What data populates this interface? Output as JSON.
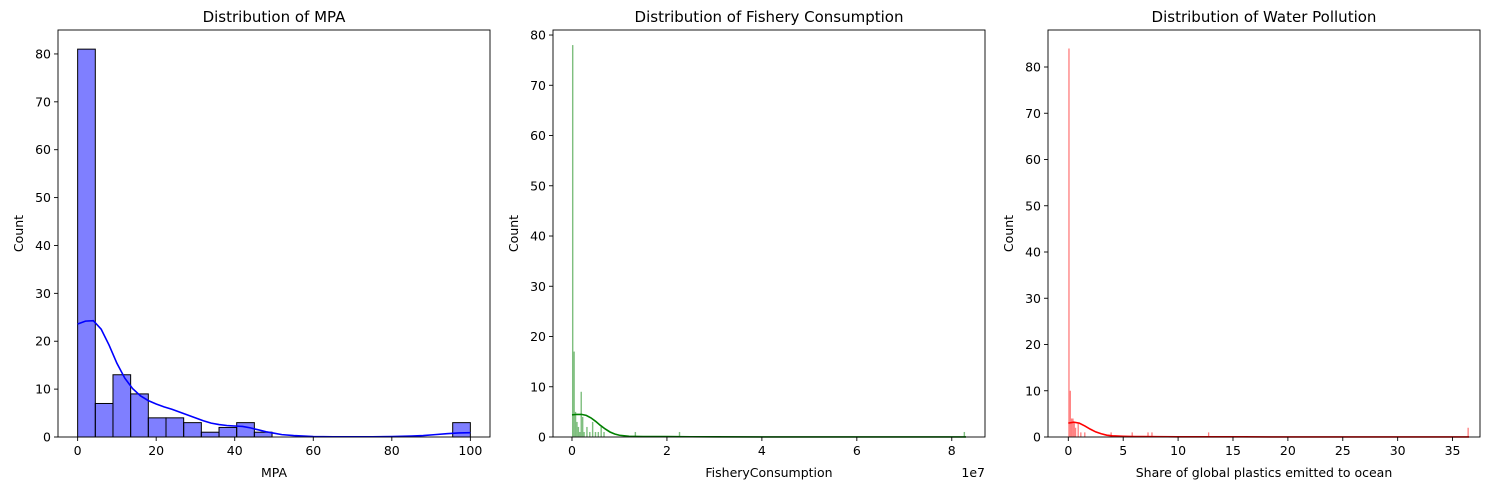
{
  "chart_data": [
    {
      "type": "bar",
      "title": "Distribution of MPA",
      "xlabel": "MPA",
      "ylabel": "Count",
      "xlim": [
        -5,
        105
      ],
      "ylim": [
        0,
        85
      ],
      "xticks": [
        0,
        20,
        40,
        60,
        80,
        100
      ],
      "yticks": [
        0,
        10,
        20,
        30,
        40,
        50,
        60,
        70,
        80
      ],
      "xtick_labels": [
        "0",
        "20",
        "40",
        "60",
        "80",
        "100"
      ],
      "ytick_labels": [
        "0",
        "10",
        "20",
        "30",
        "40",
        "50",
        "60",
        "70",
        "80"
      ],
      "bar_color": "#0000ff",
      "bar_alpha": 0.5,
      "bar_edge": "#000000",
      "kde_color": "#0000ff",
      "bins": [
        {
          "x0": 0.0,
          "x1": 4.5,
          "count": 81
        },
        {
          "x0": 4.5,
          "x1": 9.0,
          "count": 7
        },
        {
          "x0": 9.0,
          "x1": 13.5,
          "count": 13
        },
        {
          "x0": 13.5,
          "x1": 18.0,
          "count": 9
        },
        {
          "x0": 18.0,
          "x1": 22.5,
          "count": 4
        },
        {
          "x0": 22.5,
          "x1": 27.0,
          "count": 4
        },
        {
          "x0": 27.0,
          "x1": 31.5,
          "count": 3
        },
        {
          "x0": 31.5,
          "x1": 36.0,
          "count": 1
        },
        {
          "x0": 36.0,
          "x1": 40.5,
          "count": 2
        },
        {
          "x0": 40.5,
          "x1": 45.0,
          "count": 3
        },
        {
          "x0": 45.0,
          "x1": 49.5,
          "count": 1
        },
        {
          "x0": 95.5,
          "x1": 100.0,
          "count": 3
        }
      ],
      "kde": [
        [
          0,
          23.6
        ],
        [
          2,
          24.2
        ],
        [
          4,
          24.3
        ],
        [
          6,
          22.5
        ],
        [
          8,
          19.2
        ],
        [
          10,
          15.4
        ],
        [
          12,
          12.3
        ],
        [
          14,
          10.1
        ],
        [
          16,
          8.6
        ],
        [
          18,
          7.6
        ],
        [
          20,
          6.9
        ],
        [
          22,
          6.3
        ],
        [
          24,
          5.8
        ],
        [
          26,
          5.2
        ],
        [
          28,
          4.6
        ],
        [
          30,
          4.0
        ],
        [
          32,
          3.4
        ],
        [
          34,
          2.9
        ],
        [
          36,
          2.6
        ],
        [
          38,
          2.4
        ],
        [
          40,
          2.3
        ],
        [
          42,
          2.2
        ],
        [
          44,
          1.9
        ],
        [
          46,
          1.5
        ],
        [
          48,
          1.1
        ],
        [
          50,
          0.8
        ],
        [
          52,
          0.5
        ],
        [
          55,
          0.3
        ],
        [
          60,
          0.1
        ],
        [
          65,
          0.05
        ],
        [
          70,
          0.05
        ],
        [
          75,
          0.05
        ],
        [
          80,
          0.1
        ],
        [
          85,
          0.2
        ],
        [
          88,
          0.3
        ],
        [
          91,
          0.5
        ],
        [
          94,
          0.7
        ],
        [
          97,
          0.85
        ],
        [
          100,
          0.9
        ]
      ]
    },
    {
      "type": "bar",
      "title": "Distribution of Fishery Consumption",
      "xlabel": "FisheryConsumption",
      "ylabel": "Count",
      "offset_text": "1e7",
      "xlim": [
        -0.4,
        8.7
      ],
      "ylim": [
        0,
        81
      ],
      "xticks": [
        0,
        2,
        4,
        6,
        8
      ],
      "yticks": [
        0,
        10,
        20,
        30,
        40,
        50,
        60,
        70,
        80
      ],
      "xtick_labels": [
        "0",
        "2",
        "4",
        "6",
        "8"
      ],
      "ytick_labels": [
        "0",
        "10",
        "20",
        "30",
        "40",
        "50",
        "60",
        "70",
        "80"
      ],
      "bar_color": "#008000",
      "bar_alpha": 0.5,
      "kde_color": "#008000",
      "bins": [
        {
          "x0": 0.0,
          "x1": 0.03,
          "count": 78
        },
        {
          "x0": 0.03,
          "x1": 0.06,
          "count": 17
        },
        {
          "x0": 0.06,
          "x1": 0.09,
          "count": 5
        },
        {
          "x0": 0.09,
          "x1": 0.12,
          "count": 3
        },
        {
          "x0": 0.12,
          "x1": 0.15,
          "count": 2
        },
        {
          "x0": 0.15,
          "x1": 0.18,
          "count": 1
        },
        {
          "x0": 0.18,
          "x1": 0.21,
          "count": 9
        },
        {
          "x0": 0.21,
          "x1": 0.24,
          "count": 4
        },
        {
          "x0": 0.24,
          "x1": 0.27,
          "count": 1
        },
        {
          "x0": 0.3,
          "x1": 0.33,
          "count": 2
        },
        {
          "x0": 0.36,
          "x1": 0.39,
          "count": 1
        },
        {
          "x0": 0.42,
          "x1": 0.45,
          "count": 3
        },
        {
          "x0": 0.48,
          "x1": 0.51,
          "count": 1
        },
        {
          "x0": 0.54,
          "x1": 0.57,
          "count": 1
        },
        {
          "x0": 0.6,
          "x1": 0.63,
          "count": 2
        },
        {
          "x0": 0.66,
          "x1": 0.69,
          "count": 1
        },
        {
          "x0": 1.32,
          "x1": 1.35,
          "count": 1
        },
        {
          "x0": 2.25,
          "x1": 2.28,
          "count": 1
        },
        {
          "x0": 8.25,
          "x1": 8.28,
          "count": 1
        }
      ],
      "kde": [
        [
          0,
          4.4
        ],
        [
          0.1,
          4.5
        ],
        [
          0.2,
          4.5
        ],
        [
          0.3,
          4.3
        ],
        [
          0.4,
          3.8
        ],
        [
          0.5,
          3.1
        ],
        [
          0.6,
          2.3
        ],
        [
          0.7,
          1.6
        ],
        [
          0.8,
          1.0
        ],
        [
          0.9,
          0.6
        ],
        [
          1.0,
          0.35
        ],
        [
          1.2,
          0.15
        ],
        [
          1.5,
          0.08
        ],
        [
          2.0,
          0.08
        ],
        [
          2.5,
          0.05
        ],
        [
          3.0,
          0.03
        ],
        [
          4.0,
          0.02
        ],
        [
          5.0,
          0.02
        ],
        [
          6.0,
          0.02
        ],
        [
          7.0,
          0.02
        ],
        [
          8.0,
          0.02
        ],
        [
          8.3,
          0.02
        ]
      ]
    },
    {
      "type": "bar",
      "title": "Distribution of Water Pollution",
      "xlabel": "Share of global plastics emitted to ocean",
      "ylabel": "Count",
      "xlim": [
        -1.85,
        37.5
      ],
      "ylim": [
        0,
        88
      ],
      "xticks": [
        0,
        5,
        10,
        15,
        20,
        25,
        30,
        35
      ],
      "yticks": [
        0,
        10,
        20,
        30,
        40,
        50,
        60,
        70,
        80
      ],
      "xtick_labels": [
        "0",
        "5",
        "10",
        "15",
        "20",
        "25",
        "30",
        "35"
      ],
      "ytick_labels": [
        "0",
        "10",
        "20",
        "30",
        "40",
        "50",
        "60",
        "70",
        "80"
      ],
      "bar_color": "#ff0000",
      "bar_alpha": 0.5,
      "kde_color": "#ff0000",
      "bins": [
        {
          "x0": 0.0,
          "x1": 0.12,
          "count": 84
        },
        {
          "x0": 0.12,
          "x1": 0.24,
          "count": 10
        },
        {
          "x0": 0.24,
          "x1": 0.36,
          "count": 4
        },
        {
          "x0": 0.36,
          "x1": 0.48,
          "count": 4
        },
        {
          "x0": 0.48,
          "x1": 0.6,
          "count": 3
        },
        {
          "x0": 0.6,
          "x1": 0.72,
          "count": 2
        },
        {
          "x0": 0.84,
          "x1": 0.96,
          "count": 3
        },
        {
          "x0": 1.08,
          "x1": 1.2,
          "count": 1
        },
        {
          "x0": 1.44,
          "x1": 1.56,
          "count": 1
        },
        {
          "x0": 3.84,
          "x1": 3.96,
          "count": 1
        },
        {
          "x0": 5.76,
          "x1": 5.88,
          "count": 1
        },
        {
          "x0": 7.2,
          "x1": 7.32,
          "count": 1
        },
        {
          "x0": 7.56,
          "x1": 7.68,
          "count": 1
        },
        {
          "x0": 12.72,
          "x1": 12.84,
          "count": 1
        },
        {
          "x0": 36.36,
          "x1": 36.48,
          "count": 2
        }
      ],
      "kde": [
        [
          0,
          3.0
        ],
        [
          0.5,
          3.2
        ],
        [
          1.0,
          3.0
        ],
        [
          1.5,
          2.4
        ],
        [
          2.0,
          1.7
        ],
        [
          2.5,
          1.1
        ],
        [
          3.0,
          0.7
        ],
        [
          3.5,
          0.4
        ],
        [
          4.0,
          0.25
        ],
        [
          5.0,
          0.15
        ],
        [
          6.0,
          0.1
        ],
        [
          8.0,
          0.08
        ],
        [
          10.0,
          0.05
        ],
        [
          13.0,
          0.05
        ],
        [
          16.0,
          0.03
        ],
        [
          20.0,
          0.02
        ],
        [
          25.0,
          0.02
        ],
        [
          30.0,
          0.02
        ],
        [
          35.0,
          0.02
        ],
        [
          36.5,
          0.02
        ]
      ]
    }
  ]
}
